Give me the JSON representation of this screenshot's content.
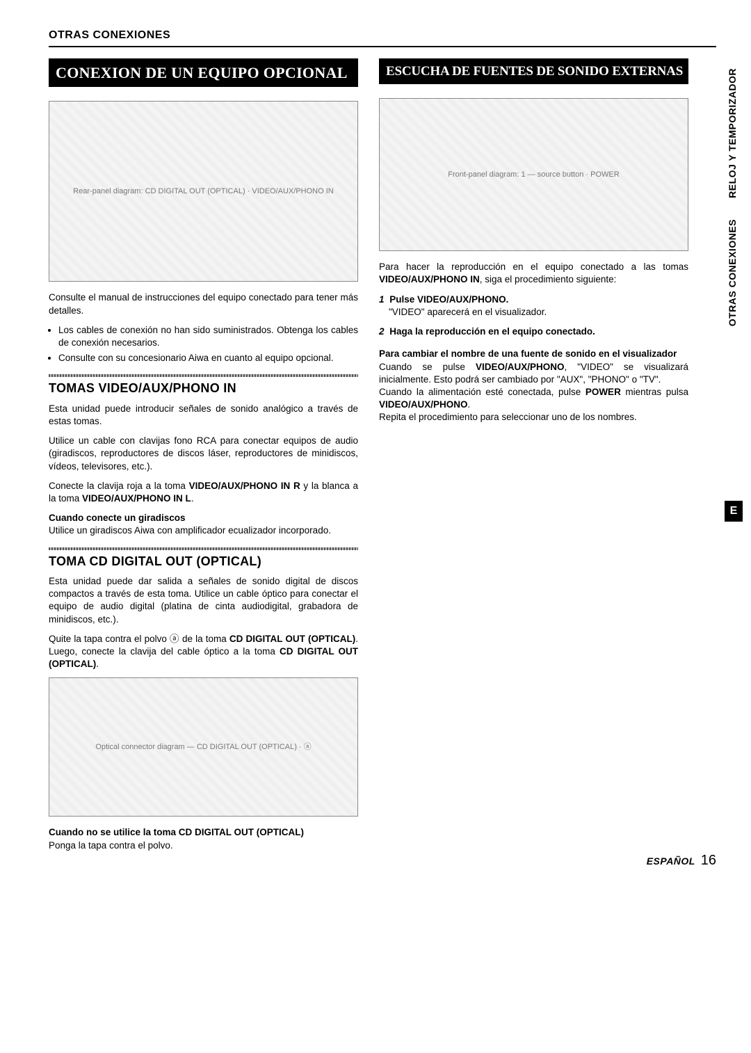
{
  "sectionLabel": "OTRAS CONEXIONES",
  "vtabs": {
    "t1": "RELOJ Y TEMPORIZADOR",
    "t2": "OTRAS CONEXIONES"
  },
  "eBadge": "E",
  "left": {
    "banner": "CONEXION DE UN EQUIPO OPCIONAL",
    "diag1Alt": "Rear-panel diagram: CD DIGITAL OUT (OPTICAL) · VIDEO/AUX/PHONO IN",
    "intro": "Consulte el manual de instrucciones del equipo conectado para tener más detalles.",
    "bullets": [
      "Los cables de conexión no han sido suministrados. Obtenga los cables de conexión necesarios.",
      "Consulte con su concesionario Aiwa en cuanto al equipo opcional."
    ],
    "h1": "TOMAS VIDEO/AUX/PHONO IN",
    "p1a": "Esta unidad puede introducir señales de sonido analógico a través de estas tomas.",
    "p1b": "Utilice un cable con clavijas fono RCA para conectar equipos de audio (giradiscos, reproductores de discos láser, reproductores de minidiscos, vídeos, televisores, etc.).",
    "p1cPre": "Conecte la clavija roja a la toma ",
    "p1cB1": "VIDEO/AUX/PHONO IN R",
    "p1cMid": " y la blanca a la toma ",
    "p1cB2": "VIDEO/AUX/PHONO IN L",
    "p1cEnd": ".",
    "sub1Title": "Cuando conecte un giradiscos",
    "sub1Body": "Utilice un giradiscos Aiwa con amplificador ecualizador incorporado.",
    "h2": "TOMA CD DIGITAL OUT (OPTICAL)",
    "p2a": "Esta unidad puede dar salida a señales de sonido digital de discos compactos a través de esta toma. Utilice un cable óptico para conectar el equipo de audio digital (platina de cinta audiodigital, grabadora de minidiscos, etc.).",
    "p2bPre": "Quite la tapa contra el polvo ⓐ de la toma ",
    "p2bB1": "CD DIGITAL OUT (OPTICAL)",
    "p2bMid": ". Luego, conecte la clavija del cable óptico a la toma ",
    "p2bB2": "CD DIGITAL OUT (OPTICAL)",
    "p2bEnd": ".",
    "diag2Alt": "Optical connector diagram — CD DIGITAL OUT (OPTICAL) · ⓐ",
    "sub2Title": "Cuando no se utilice la toma CD DIGITAL OUT (OPTICAL)",
    "sub2Body": "Ponga la tapa contra el polvo."
  },
  "right": {
    "banner": "ESCUCHA DE FUENTES DE SONIDO EXTERNAS",
    "diagAlt": "Front-panel diagram: 1 — source button · POWER",
    "introPre": "Para hacer la reproducción en el equipo conectado a las tomas ",
    "introB": "VIDEO/AUX/PHONO IN",
    "introEnd": ", siga el procedimiento siguiente:",
    "step1Num": "1",
    "step1Title": "Pulse VIDEO/AUX/PHONO.",
    "step1Body": "\"VIDEO\" aparecerá en el visualizador.",
    "step2Num": "2",
    "step2Title": "Haga la reproducción en el equipo conectado.",
    "sub1Title": "Para cambiar el nombre de una fuente de sonido en el visualizador",
    "sub1aPre": "Cuando se pulse ",
    "sub1aB": "VIDEO/AUX/PHONO",
    "sub1aEnd": ", \"VIDEO\" se visualizará inicialmente. Esto podrá ser cambiado por \"AUX\", \"PHONO\" o \"TV\".",
    "sub1bPre": "Cuando la alimentación esté conectada, pulse ",
    "sub1bB1": "POWER",
    "sub1bMid": " mientras pulsa ",
    "sub1bB2": "VIDEO/AUX/PHONO",
    "sub1bEnd": ".",
    "sub1c": "Repita el procedimiento para seleccionar uno de los nombres."
  },
  "footer": {
    "lang": "ESPAÑOL",
    "page": "16"
  },
  "style": {
    "bannerBg": "#000000",
    "bannerFg": "#ffffff",
    "bodyFontSize": 13.5,
    "h2FontSize": 18,
    "bannerFontSize": 22
  }
}
